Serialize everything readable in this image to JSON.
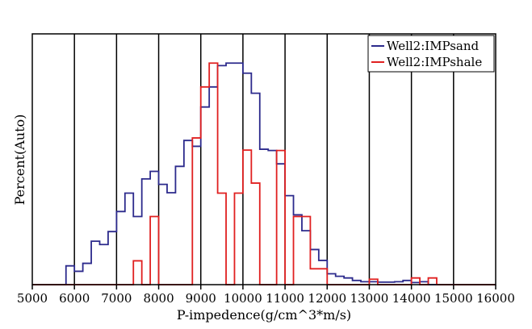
{
  "chart_data": {
    "type": "line",
    "title": "",
    "xlabel": "P-impedence(g/cm^3*m/s)",
    "ylabel": "Percent(Auto)",
    "xlim": [
      5000,
      16000
    ],
    "x_ticks": [
      5000,
      6000,
      7000,
      8000,
      9000,
      10000,
      11000,
      12000,
      13000,
      14000,
      15000,
      16000
    ],
    "x_tick_labels": [
      "5000",
      "6000",
      "7000",
      "8000",
      "9000",
      "10000",
      "11000",
      "12000",
      "13000",
      "14000",
      "15000",
      "16000"
    ],
    "y_ticks_shown": false,
    "grid": "vertical",
    "legend_position": "top-right",
    "bin_edges": [
      5000,
      5200,
      5400,
      5600,
      5800,
      6000,
      6200,
      6400,
      6600,
      6800,
      7000,
      7200,
      7400,
      7600,
      7800,
      8000,
      8200,
      8400,
      8600,
      8800,
      9000,
      9200,
      9400,
      9600,
      9800,
      10000,
      10200,
      10400,
      10600,
      10800,
      11000,
      11200,
      11400,
      11600,
      11800,
      12000,
      12200,
      12400,
      12600,
      12800,
      13000,
      13200,
      13400,
      13600,
      13800,
      14000,
      14200,
      14400,
      14600,
      14800,
      15000,
      15200,
      15400,
      15600,
      15800,
      16000
    ],
    "series": [
      {
        "name": "Well2:IMPsand",
        "color": "#2c2a8c",
        "values": [
          0,
          0,
          0,
          0,
          4.5,
          3.2,
          5.1,
          10.4,
          9.6,
          12.7,
          17.5,
          21.9,
          16.3,
          25.3,
          27.1,
          24.0,
          22.0,
          28.3,
          34.5,
          33.1,
          42.5,
          47.3,
          52.4,
          53.0,
          53.0,
          50.6,
          45.8,
          32.4,
          32.1,
          28.9,
          21.3,
          16.7,
          12.9,
          8.4,
          5.8,
          2.6,
          2.0,
          1.6,
          1.0,
          0.7,
          0.7,
          0.6,
          0.6,
          0.7,
          1.0,
          0.5,
          0.7,
          0,
          0,
          0,
          0,
          0,
          0,
          0,
          0
        ]
      },
      {
        "name": "Well2:IMPshale",
        "color": "#e02020",
        "values": [
          0,
          0,
          0,
          0,
          0,
          0,
          0,
          0,
          0,
          0,
          0,
          0,
          5.7,
          0,
          16.3,
          0,
          0,
          0,
          0,
          35.1,
          47.3,
          53.0,
          21.9,
          0,
          21.9,
          32.2,
          24.3,
          0,
          0,
          32.1,
          0,
          16.3,
          16.3,
          3.8,
          3.8,
          0,
          0,
          0,
          0,
          0,
          1.3,
          0,
          0,
          0,
          0,
          1.6,
          0,
          1.6,
          0,
          0,
          0,
          0,
          0,
          0,
          0
        ]
      }
    ]
  }
}
